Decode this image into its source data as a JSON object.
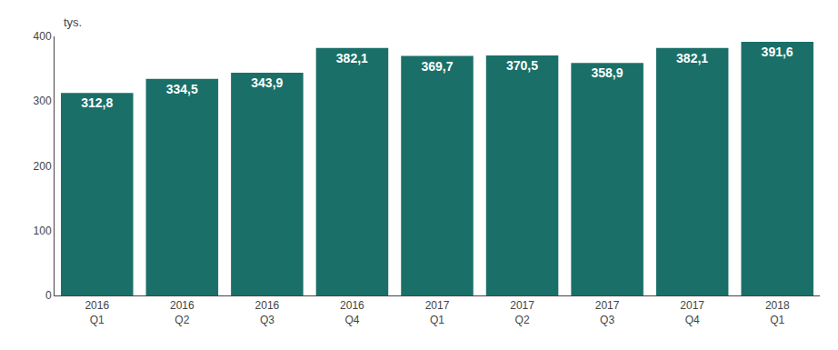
{
  "chart_data": {
    "type": "bar",
    "categories": [
      "2016\nQ1",
      "2016\nQ2",
      "2016\nQ3",
      "2016\nQ4",
      "2017\nQ1",
      "2017\nQ2",
      "2017\nQ3",
      "2017\nQ4",
      "2018\nQ1"
    ],
    "values": [
      312.8,
      334.5,
      343.9,
      382.1,
      369.7,
      370.5,
      358.9,
      382.1,
      391.6
    ],
    "value_labels": [
      "312,8",
      "334,5",
      "343,9",
      "382,1",
      "369,7",
      "370,5",
      "358,9",
      "382,1",
      "391,6"
    ],
    "data_labels": true,
    "color": "#1a7068",
    "ylabel": "tys.",
    "ylim": [
      0,
      400
    ],
    "yticks": [
      0,
      100,
      200,
      300,
      400
    ],
    "grid": false
  }
}
